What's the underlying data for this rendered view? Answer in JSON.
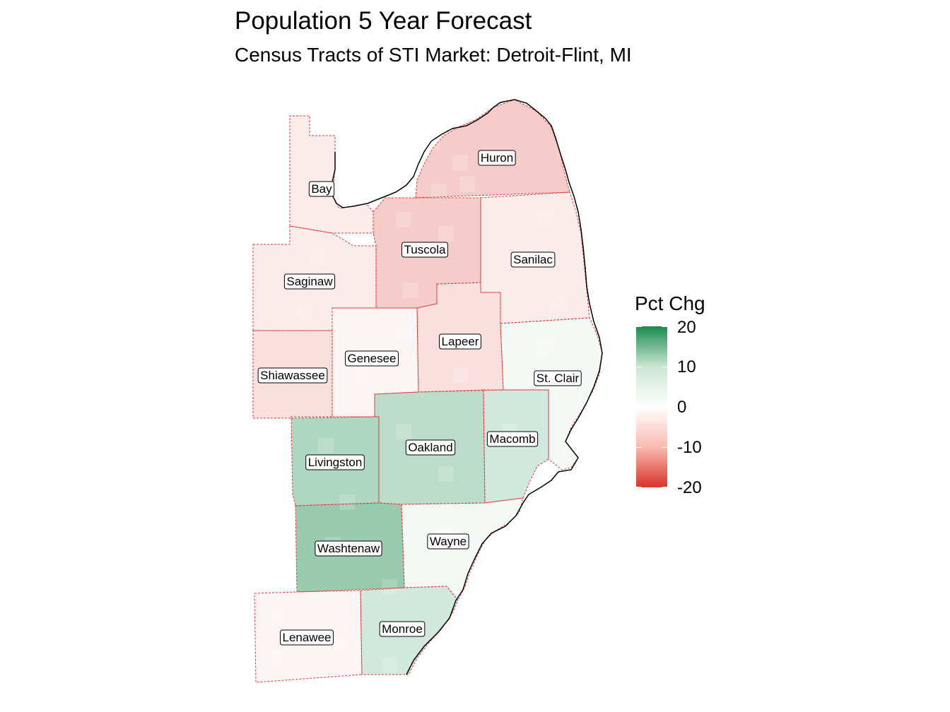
{
  "title": "Population 5 Year Forecast",
  "subtitle": "Census Tracts of STI Market: Detroit-Flint, MI",
  "legend": {
    "title": "Pct Chg",
    "ticks": [
      "20",
      "10",
      "0",
      "-10",
      "-20"
    ],
    "range": [
      -20,
      20
    ],
    "colors": {
      "high": "#1b8a4e",
      "mid": "#ffffff",
      "low": "#d9332a"
    }
  },
  "counties": [
    {
      "name": "Huron",
      "pct_chg": -5
    },
    {
      "name": "Bay",
      "pct_chg": -2
    },
    {
      "name": "Tuscola",
      "pct_chg": -5
    },
    {
      "name": "Sanilac",
      "pct_chg": -2
    },
    {
      "name": "Saginaw",
      "pct_chg": -2
    },
    {
      "name": "Lapeer",
      "pct_chg": -3
    },
    {
      "name": "Genesee",
      "pct_chg": -1
    },
    {
      "name": "Shiawassee",
      "pct_chg": -3
    },
    {
      "name": "St. Clair",
      "pct_chg": 1
    },
    {
      "name": "Oakland",
      "pct_chg": 6
    },
    {
      "name": "Macomb",
      "pct_chg": 4
    },
    {
      "name": "Livingston",
      "pct_chg": 7
    },
    {
      "name": "Washtenaw",
      "pct_chg": 9
    },
    {
      "name": "Wayne",
      "pct_chg": 1
    },
    {
      "name": "Lenawee",
      "pct_chg": -1
    },
    {
      "name": "Monroe",
      "pct_chg": 4
    }
  ]
}
